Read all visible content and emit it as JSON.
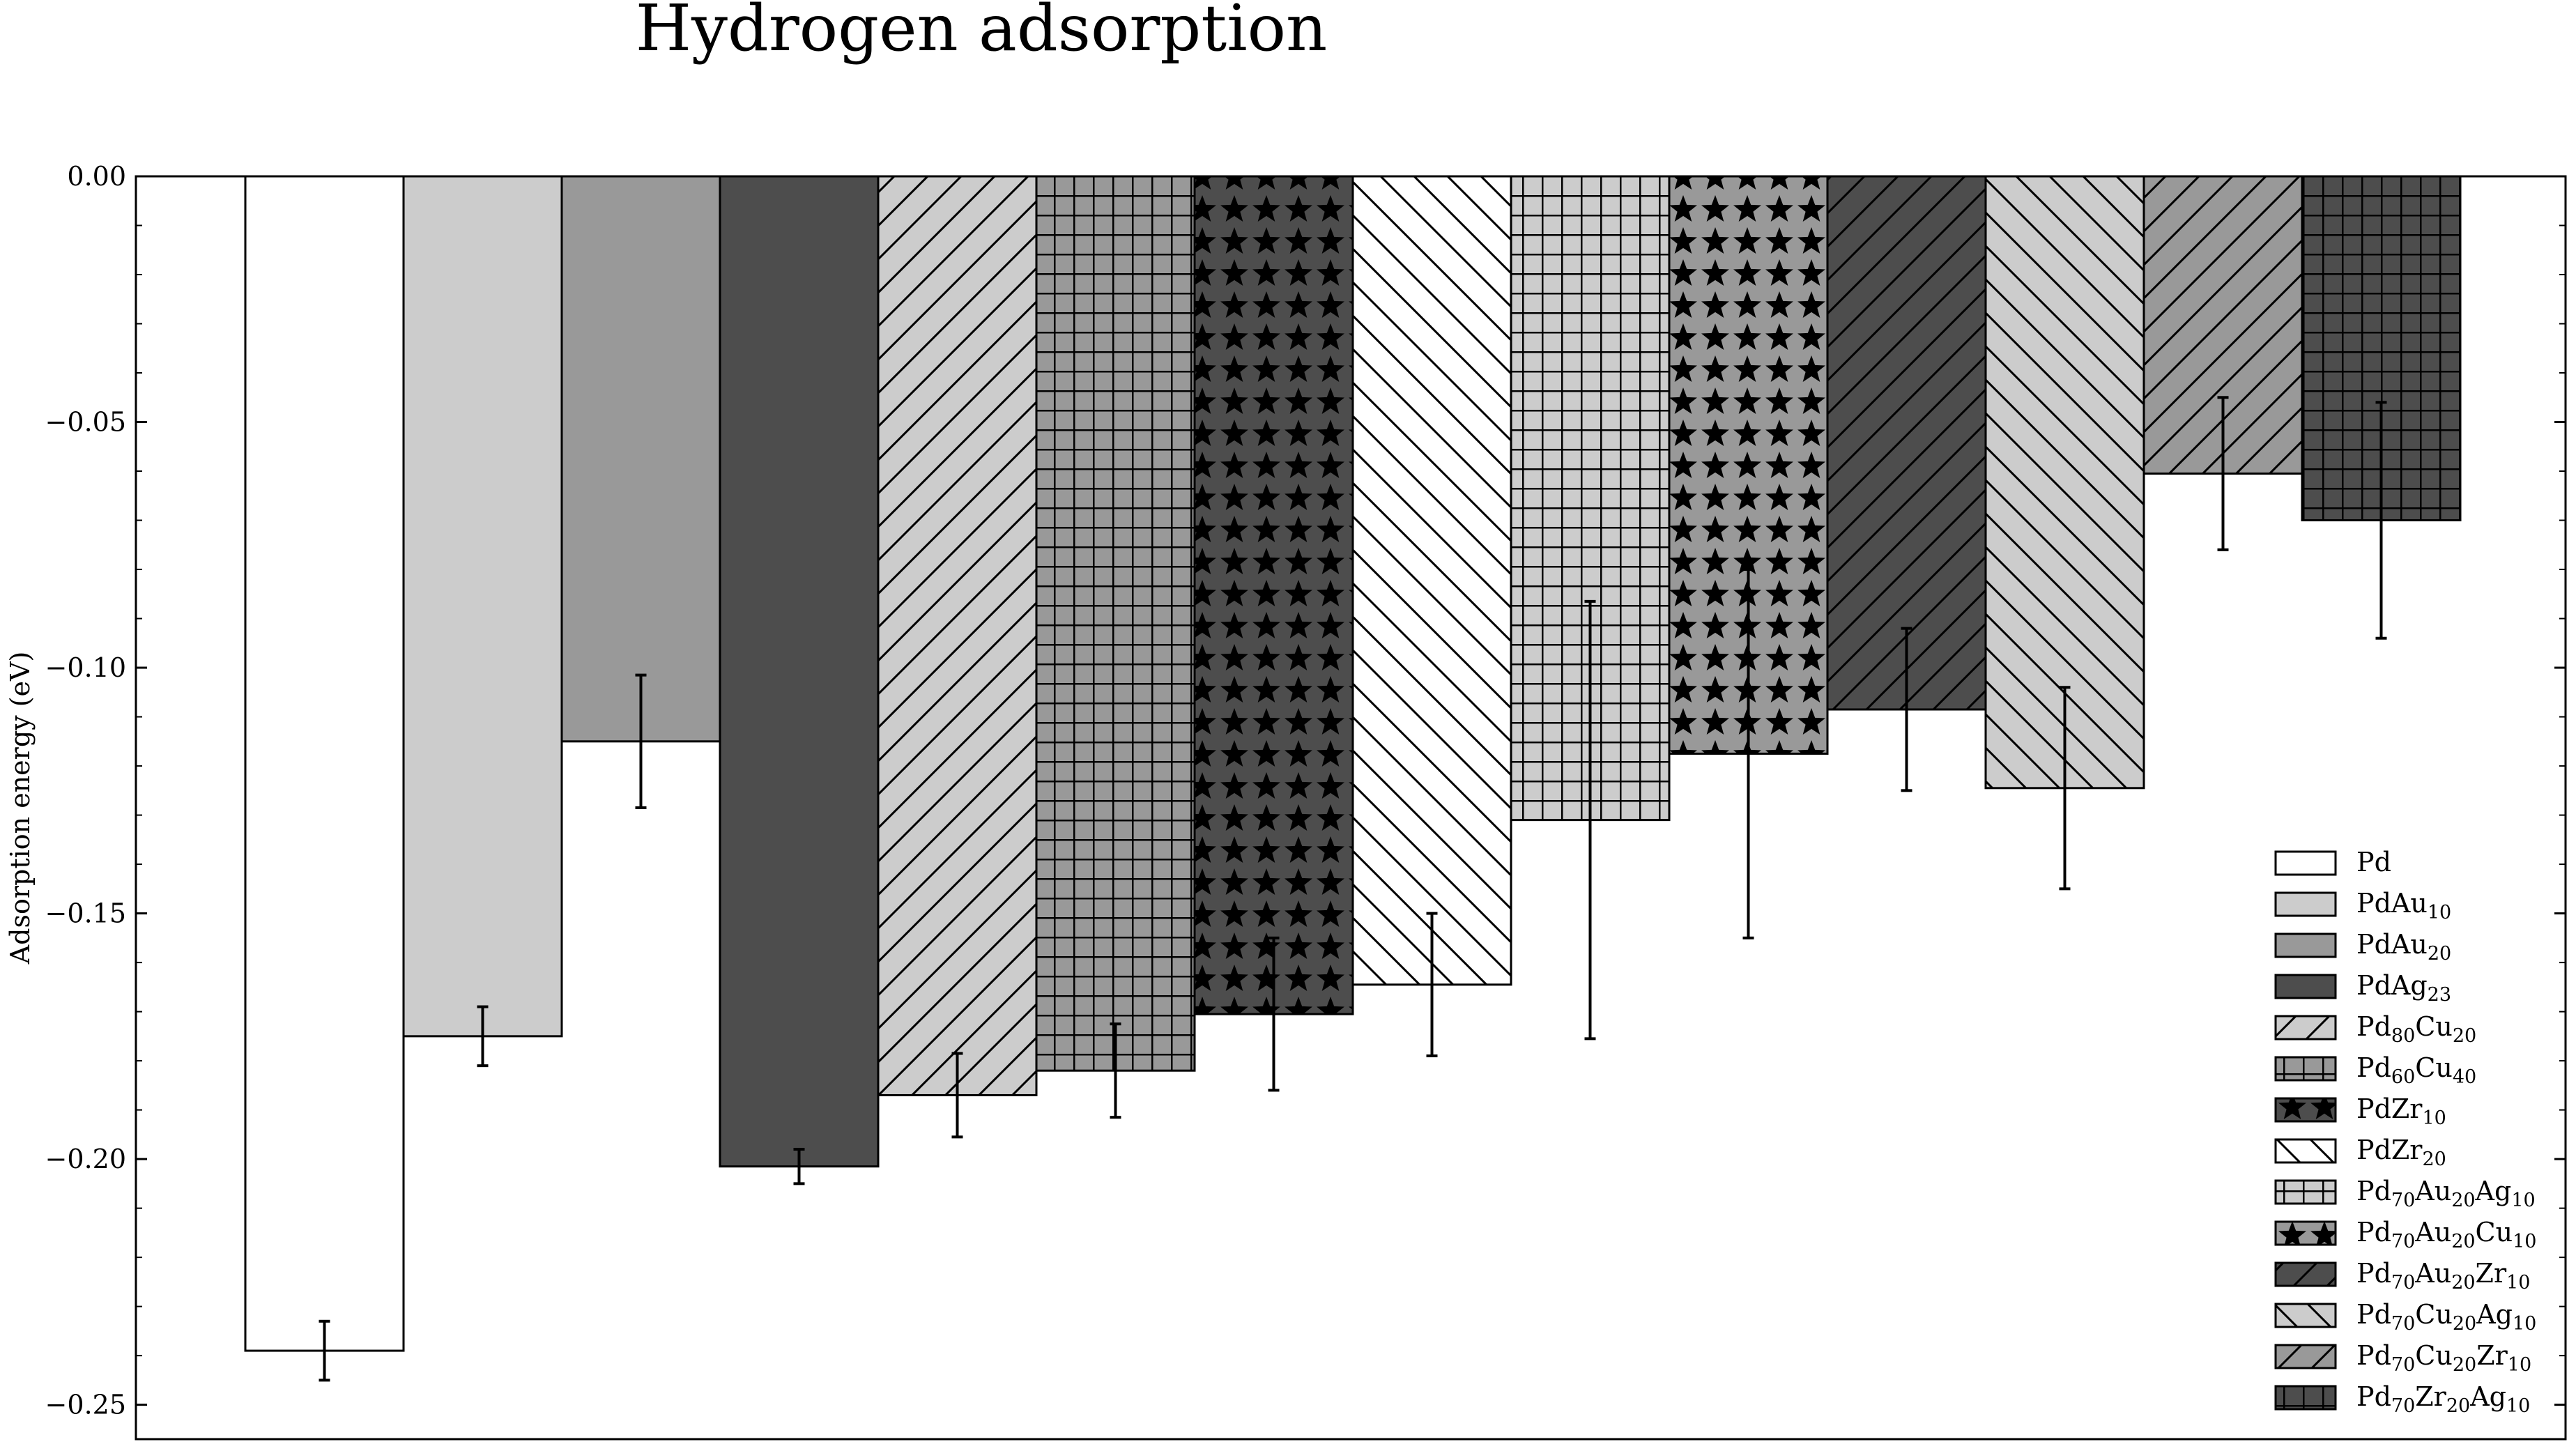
{
  "chart_data": {
    "type": "bar",
    "title": "Hydrogen adsorption",
    "xlabel": "",
    "ylabel": "Adsorption energy (eV)",
    "ylim": [
      -0.257,
      0.0
    ],
    "yticks": [
      0.0,
      -0.05,
      -0.1,
      -0.15,
      -0.2,
      -0.25
    ],
    "ytick_labels": [
      "0.00",
      "−0.05",
      "−0.10",
      "−0.15",
      "−0.20",
      "−0.25"
    ],
    "grid": false,
    "legend_position": "bottom-right",
    "series": [
      {
        "name": "Pd",
        "value": -0.239,
        "error": 0.006,
        "fill": "#ffffff",
        "hatch": "none",
        "label_parts": [
          {
            "t": "Pd",
            "sub": false
          }
        ]
      },
      {
        "name": "PdAu10",
        "value": -0.175,
        "error": 0.006,
        "fill": "#cccccc",
        "hatch": "none",
        "label_parts": [
          {
            "t": "PdAu",
            "sub": false
          },
          {
            "t": "10",
            "sub": true
          }
        ]
      },
      {
        "name": "PdAu20",
        "value": -0.115,
        "error": 0.0135,
        "fill": "#999999",
        "hatch": "none",
        "label_parts": [
          {
            "t": "PdAu",
            "sub": false
          },
          {
            "t": "20",
            "sub": true
          }
        ]
      },
      {
        "name": "PdAg23",
        "value": -0.2015,
        "error": 0.0035,
        "fill": "#4d4d4d",
        "hatch": "none",
        "label_parts": [
          {
            "t": "PdAg",
            "sub": false
          },
          {
            "t": "23",
            "sub": true
          }
        ]
      },
      {
        "name": "Pd80Cu20",
        "value": -0.187,
        "error": 0.0085,
        "fill": "#cccccc",
        "hatch": "diag-fwd",
        "label_parts": [
          {
            "t": "Pd",
            "sub": false
          },
          {
            "t": "80",
            "sub": true
          },
          {
            "t": "Cu",
            "sub": false
          },
          {
            "t": "20",
            "sub": true
          }
        ]
      },
      {
        "name": "Pd60Cu40",
        "value": -0.182,
        "error": 0.0095,
        "fill": "#999999",
        "hatch": "grid",
        "label_parts": [
          {
            "t": "Pd",
            "sub": false
          },
          {
            "t": "60",
            "sub": true
          },
          {
            "t": "Cu",
            "sub": false
          },
          {
            "t": "40",
            "sub": true
          }
        ]
      },
      {
        "name": "PdZr10",
        "value": -0.1705,
        "error": 0.0155,
        "fill": "#4d4d4d",
        "hatch": "stars",
        "label_parts": [
          {
            "t": "PdZr",
            "sub": false
          },
          {
            "t": "10",
            "sub": true
          }
        ]
      },
      {
        "name": "PdZr20",
        "value": -0.1645,
        "error": 0.0145,
        "fill": "#ffffff",
        "hatch": "diag-back",
        "label_parts": [
          {
            "t": "PdZr",
            "sub": false
          },
          {
            "t": "20",
            "sub": true
          }
        ]
      },
      {
        "name": "Pd70Au20Ag10",
        "value": -0.131,
        "error": 0.0445,
        "fill": "#cccccc",
        "hatch": "grid",
        "label_parts": [
          {
            "t": "Pd",
            "sub": false
          },
          {
            "t": "70",
            "sub": true
          },
          {
            "t": "Au",
            "sub": false
          },
          {
            "t": "20",
            "sub": true
          },
          {
            "t": "Ag",
            "sub": false
          },
          {
            "t": "10",
            "sub": true
          }
        ]
      },
      {
        "name": "Pd70Au20Cu10",
        "value": -0.1175,
        "error": 0.0375,
        "fill": "#999999",
        "hatch": "stars",
        "label_parts": [
          {
            "t": "Pd",
            "sub": false
          },
          {
            "t": "70",
            "sub": true
          },
          {
            "t": "Au",
            "sub": false
          },
          {
            "t": "20",
            "sub": true
          },
          {
            "t": "Cu",
            "sub": false
          },
          {
            "t": "10",
            "sub": true
          }
        ]
      },
      {
        "name": "Pd70Au20Zr10",
        "value": -0.1085,
        "error": 0.0165,
        "fill": "#4d4d4d",
        "hatch": "diag-fwd",
        "label_parts": [
          {
            "t": "Pd",
            "sub": false
          },
          {
            "t": "70",
            "sub": true
          },
          {
            "t": "Au",
            "sub": false
          },
          {
            "t": "20",
            "sub": true
          },
          {
            "t": "Zr",
            "sub": false
          },
          {
            "t": "10",
            "sub": true
          }
        ]
      },
      {
        "name": "Pd70Cu20Ag10",
        "value": -0.1245,
        "error": 0.0205,
        "fill": "#cccccc",
        "hatch": "diag-back",
        "label_parts": [
          {
            "t": "Pd",
            "sub": false
          },
          {
            "t": "70",
            "sub": true
          },
          {
            "t": "Cu",
            "sub": false
          },
          {
            "t": "20",
            "sub": true
          },
          {
            "t": "Ag",
            "sub": false
          },
          {
            "t": "10",
            "sub": true
          }
        ]
      },
      {
        "name": "Pd70Cu20Zr10",
        "value": -0.0605,
        "error": 0.0155,
        "fill": "#999999",
        "hatch": "diag-fwd",
        "label_parts": [
          {
            "t": "Pd",
            "sub": false
          },
          {
            "t": "70",
            "sub": true
          },
          {
            "t": "Cu",
            "sub": false
          },
          {
            "t": "20",
            "sub": true
          },
          {
            "t": "Zr",
            "sub": false
          },
          {
            "t": "10",
            "sub": true
          }
        ]
      },
      {
        "name": "Pd70Zr20Ag10",
        "value": -0.07,
        "error": 0.024,
        "fill": "#4d4d4d",
        "hatch": "grid",
        "label_parts": [
          {
            "t": "Pd",
            "sub": false
          },
          {
            "t": "70",
            "sub": true
          },
          {
            "t": "Zr",
            "sub": false
          },
          {
            "t": "20",
            "sub": true
          },
          {
            "t": "Ag",
            "sub": false
          },
          {
            "t": "10",
            "sub": true
          }
        ]
      }
    ]
  }
}
